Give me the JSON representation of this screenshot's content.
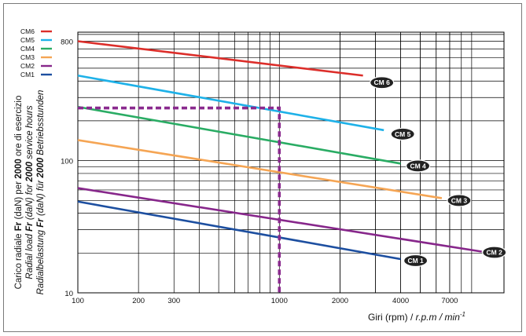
{
  "chart_data": {
    "type": "line",
    "x_scale": "log",
    "y_scale": "log",
    "xlim": [
      100,
      7000
    ],
    "ylim": [
      10,
      1000
    ],
    "x_ticks": [
      {
        "label": "100",
        "value": 100
      },
      {
        "label": "200",
        "value": 200
      },
      {
        "label": "300",
        "value": 300
      },
      {
        "label": "1000",
        "value": 1000
      },
      {
        "label": "2000",
        "value": 2000
      },
      {
        "label": "4000",
        "value": 4000
      },
      {
        "label": "7000",
        "value": 7000
      }
    ],
    "y_ticks": [
      {
        "label": "10",
        "value": 10
      },
      {
        "label": "100",
        "value": 100
      },
      {
        "label": "800",
        "value": 800
      }
    ],
    "x_label": {
      "plain": "Giri (rpm) / ",
      "italic": "r.p.m / min",
      "sup": "-1"
    },
    "y_label": {
      "line1": [
        {
          "t": "Carico radiale ",
          "b": false,
          "i": false
        },
        {
          "t": "Fr",
          "b": true,
          "i": false
        },
        {
          "t": " (daN) per ",
          "b": false,
          "i": false
        },
        {
          "t": "2000",
          "b": true,
          "i": false
        },
        {
          "t": " ore di esercizio",
          "b": false,
          "i": false
        }
      ],
      "line2": [
        {
          "t": "Radial load ",
          "b": false,
          "i": true
        },
        {
          "t": "Fr",
          "b": true,
          "i": true
        },
        {
          "t": " (daN) for ",
          "b": false,
          "i": true
        },
        {
          "t": "2000",
          "b": true,
          "i": true
        },
        {
          "t": " service hours",
          "b": false,
          "i": true
        }
      ],
      "line3": [
        {
          "t": "Radialbelastung ",
          "b": false,
          "i": true
        },
        {
          "t": "Fr",
          "b": true,
          "i": true
        },
        {
          "t": " (daN) für ",
          "b": false,
          "i": true
        },
        {
          "t": "2000",
          "b": true,
          "i": true
        },
        {
          "t": " Betriebsstunden",
          "b": false,
          "i": true
        }
      ]
    },
    "grid": true,
    "legend_placement": "top-left",
    "legend": [
      "CM6",
      "CM5",
      "CM4",
      "CM3",
      "CM2",
      "CM1"
    ],
    "series": [
      {
        "name": "CM6",
        "label": "CM 6",
        "color": "#dc2e2a",
        "points": [
          [
            100,
            800
          ],
          [
            2600,
            440
          ]
        ]
      },
      {
        "name": "CM5",
        "label": "CM 5",
        "color": "#1eb1e8",
        "points": [
          [
            100,
            440
          ],
          [
            3300,
            170
          ]
        ]
      },
      {
        "name": "CM4",
        "label": "CM 4",
        "color": "#2aac64",
        "points": [
          [
            100,
            255
          ],
          [
            4000,
            95
          ]
        ]
      },
      {
        "name": "CM3",
        "label": "CM 3",
        "color": "#f5a554",
        "points": [
          [
            100,
            143
          ],
          [
            6400,
            52
          ]
        ]
      },
      {
        "name": "CM2",
        "label": "CM 2",
        "color": "#87278b",
        "points": [
          [
            100,
            62
          ],
          [
            10100,
            20.5
          ]
        ]
      },
      {
        "name": "CM1",
        "label": "CM 1",
        "color": "#1d4fa0",
        "points": [
          [
            100,
            49
          ],
          [
            4000,
            18
          ]
        ]
      }
    ],
    "example_path": {
      "color": "#8a2a8e",
      "points": [
        [
          100,
          250
        ],
        [
          1000,
          250
        ],
        [
          1000,
          10
        ]
      ]
    }
  }
}
